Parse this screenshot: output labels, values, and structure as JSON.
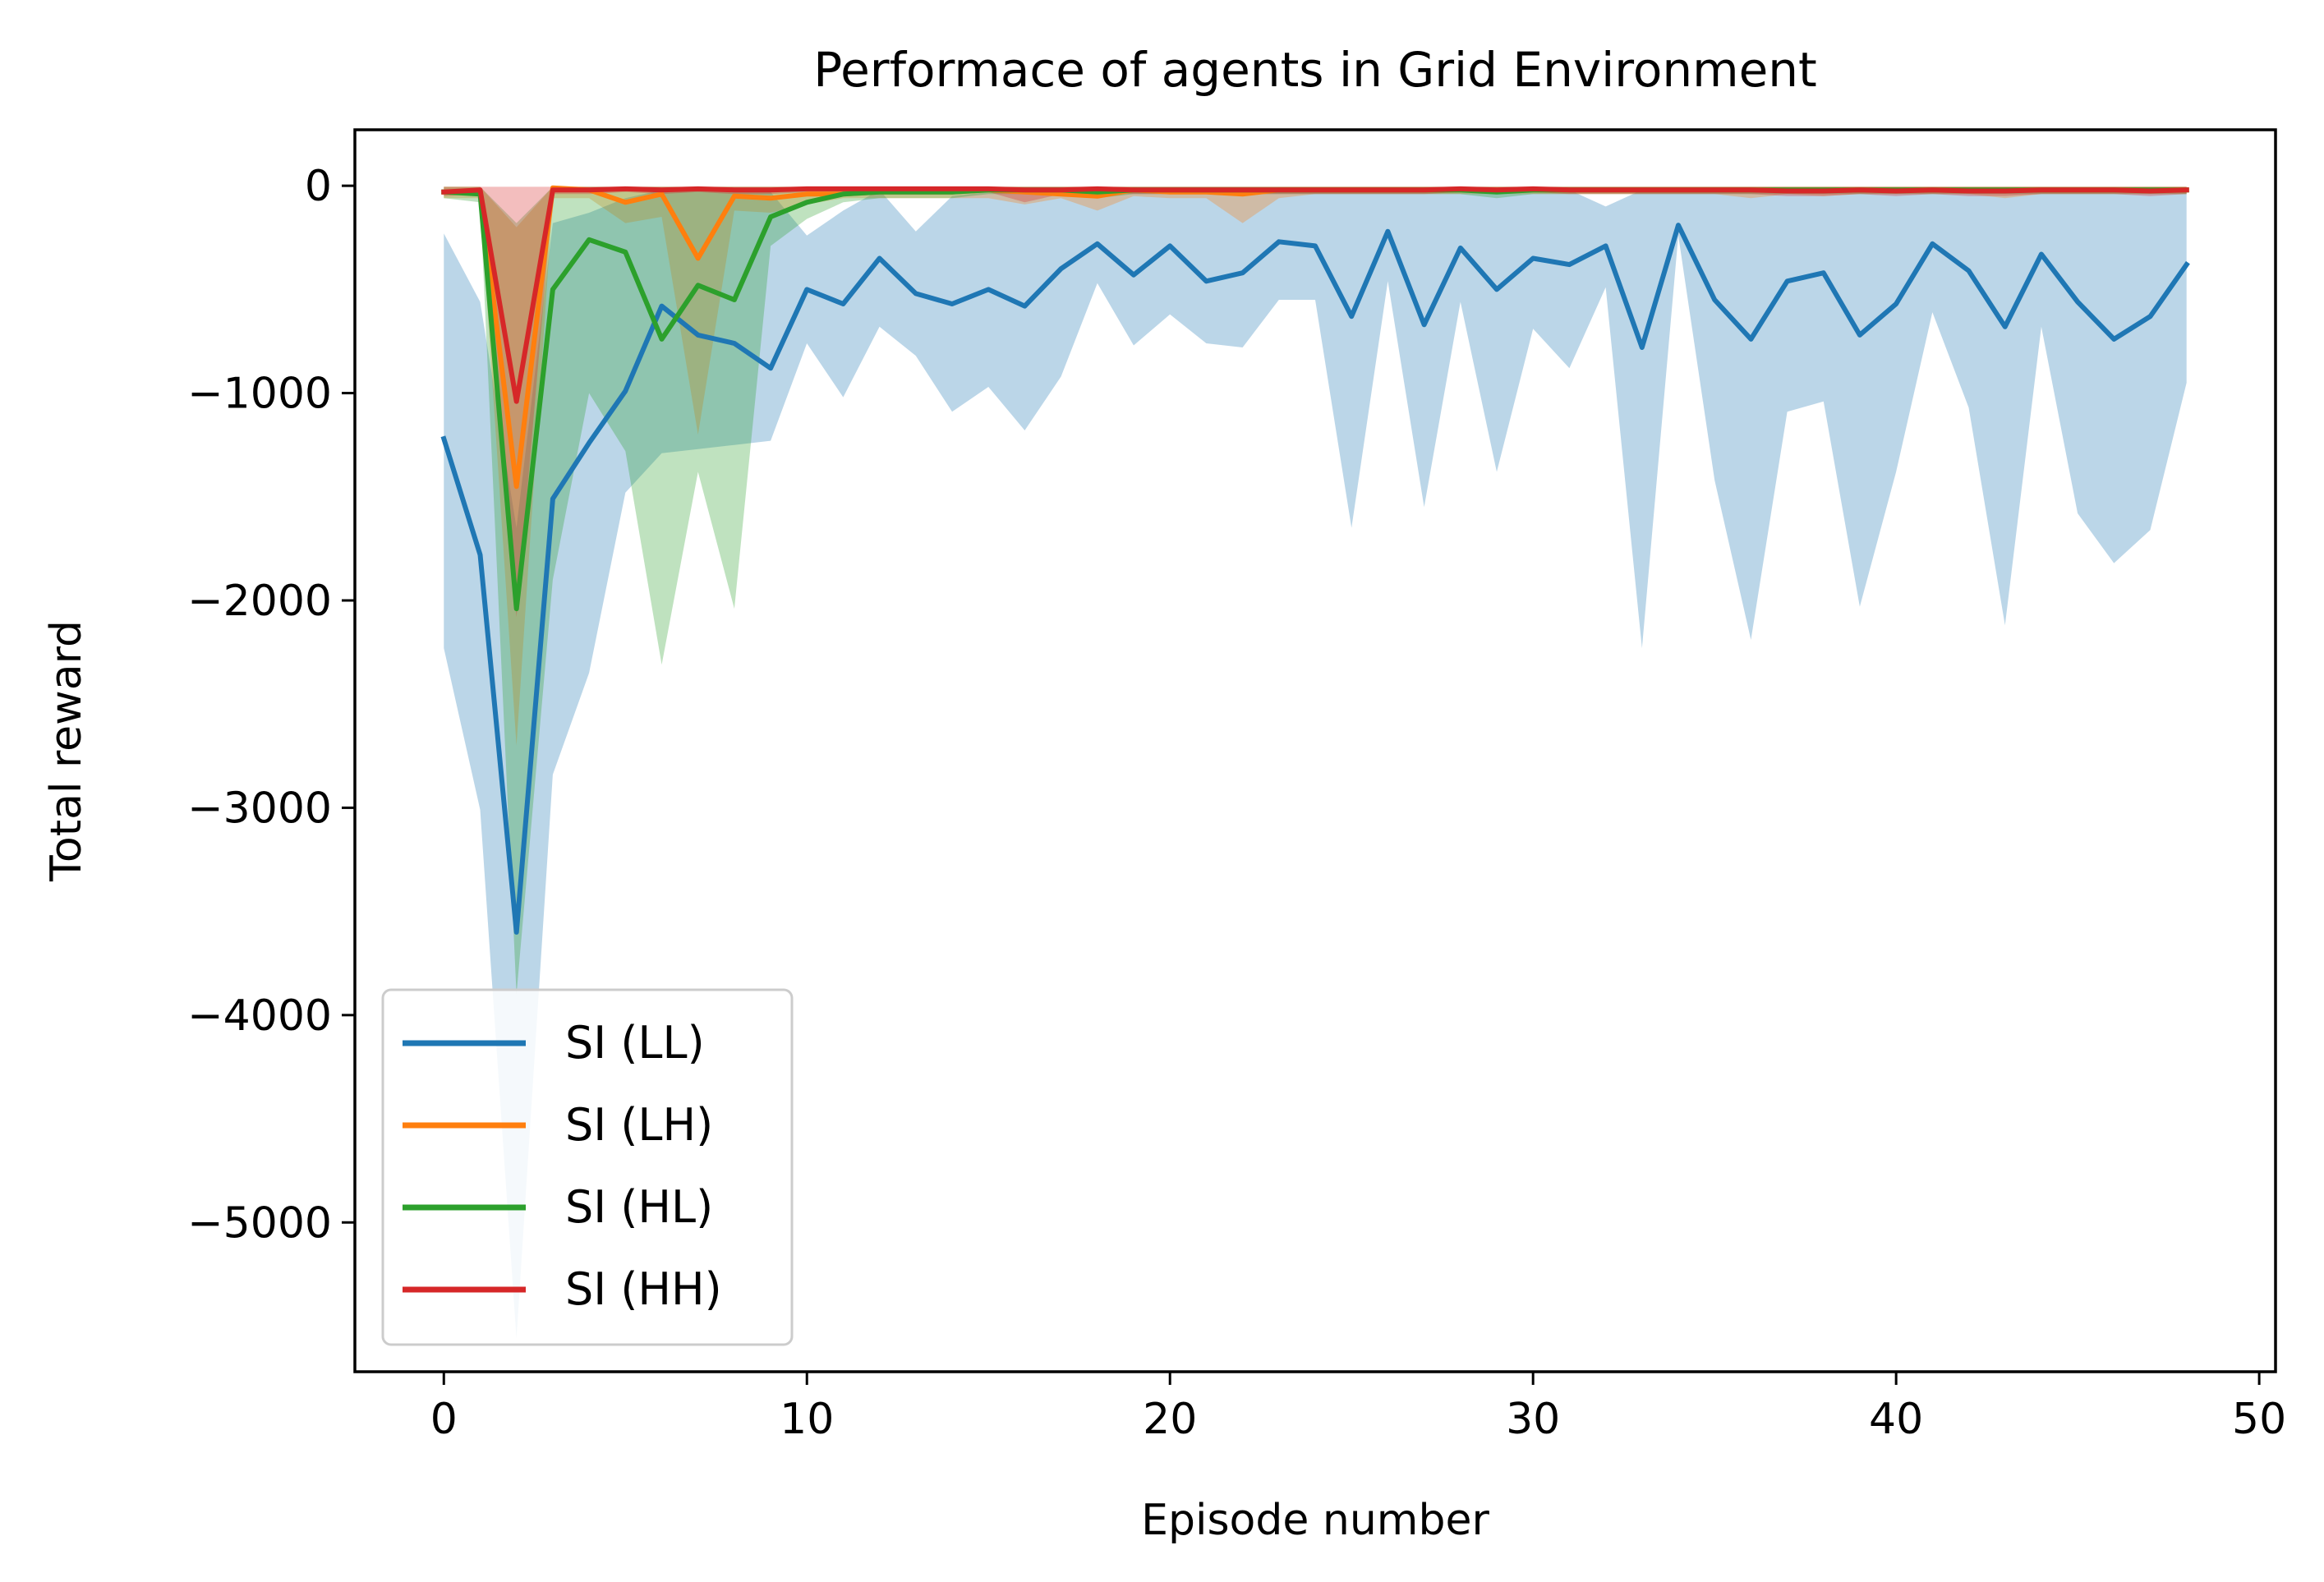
{
  "chart_data": {
    "type": "line",
    "title": "Performace of agents in Grid Environment",
    "xlabel": "Episode number",
    "ylabel": "Total reward",
    "xlim": [
      -2.45,
      50.45
    ],
    "ylim": [
      -5720,
      270
    ],
    "xticks": [
      0,
      10,
      20,
      30,
      40,
      50
    ],
    "xtick_labels": [
      "0",
      "10",
      "20",
      "30",
      "40",
      "50"
    ],
    "yticks": [
      0,
      -1000,
      -2000,
      -3000,
      -4000,
      -5000
    ],
    "ytick_labels": [
      "0",
      "−1000",
      "−2000",
      "−3000",
      "−4000",
      "−5000"
    ],
    "grid": false,
    "legend_position": "lower-left",
    "x": [
      0,
      1,
      2,
      3,
      4,
      5,
      6,
      7,
      8,
      9,
      10,
      11,
      12,
      13,
      14,
      15,
      16,
      17,
      18,
      19,
      20,
      21,
      22,
      23,
      24,
      25,
      26,
      27,
      28,
      29,
      30,
      31,
      32,
      33,
      34,
      35,
      36,
      37,
      38,
      39,
      40,
      41,
      42,
      43,
      44,
      45,
      46,
      47,
      48
    ],
    "series": [
      {
        "name": "SI (LL)",
        "color": "#1f77b4",
        "fill_alpha": 0.3,
        "values": [
          -1220,
          -1780,
          -3600,
          -1510,
          -1240,
          -990,
          -580,
          -720,
          -760,
          -880,
          -500,
          -570,
          -350,
          -520,
          -570,
          -500,
          -580,
          -400,
          -280,
          -430,
          -290,
          -460,
          -420,
          -270,
          -290,
          -630,
          -220,
          -670,
          -300,
          -500,
          -350,
          -380,
          -290,
          -780,
          -190,
          -550,
          -740,
          -460,
          -420,
          -720,
          -570,
          -280,
          -410,
          -680,
          -330,
          -560,
          -740,
          -630,
          -380
        ],
        "lower": [
          -2230,
          -3010,
          -5560,
          -2840,
          -2350,
          -1480,
          -1290,
          -1270,
          -1250,
          -1230,
          -760,
          -1020,
          -680,
          -820,
          -1090,
          -970,
          -1180,
          -920,
          -470,
          -770,
          -620,
          -760,
          -780,
          -550,
          -550,
          -1650,
          -460,
          -1550,
          -560,
          -1380,
          -690,
          -880,
          -490,
          -2230,
          -240,
          -1420,
          -2190,
          -1090,
          -1040,
          -2030,
          -1380,
          -610,
          -1070,
          -2120,
          -680,
          -1580,
          -1820,
          -1660,
          -950
        ],
        "upper": [
          -230,
          -560,
          -1650,
          -180,
          -130,
          -60,
          -20,
          -20,
          -20,
          -30,
          -240,
          -120,
          -20,
          -220,
          -50,
          -30,
          -20,
          -20,
          -20,
          -20,
          -20,
          -20,
          -20,
          -20,
          -20,
          -20,
          -20,
          -20,
          -20,
          -20,
          -20,
          -20,
          -100,
          -20,
          -20,
          -20,
          -20,
          -20,
          -20,
          -20,
          -20,
          -20,
          -20,
          -20,
          -20,
          -20,
          -20,
          -20,
          -20
        ]
      },
      {
        "name": "SI (LH)",
        "color": "#ff7f0e",
        "fill_alpha": 0.3,
        "values": [
          -30,
          -30,
          -1450,
          -10,
          -20,
          -80,
          -40,
          -350,
          -50,
          -60,
          -40,
          -40,
          -30,
          -30,
          -30,
          -20,
          -30,
          -40,
          -50,
          -20,
          -30,
          -30,
          -40,
          -20,
          -20,
          -20,
          -20,
          -20,
          -20,
          -20,
          -20,
          -20,
          -20,
          -20,
          -20,
          -20,
          -20,
          -20,
          -20,
          -20,
          -20,
          -20,
          -20,
          -20,
          -20,
          -20,
          -20,
          -20,
          -20
        ],
        "lower": [
          -60,
          -60,
          -2700,
          -60,
          -60,
          -180,
          -150,
          -1200,
          -120,
          -130,
          -90,
          -60,
          -60,
          -60,
          -60,
          -60,
          -90,
          -60,
          -120,
          -50,
          -60,
          -60,
          -180,
          -60,
          -40,
          -40,
          -40,
          -40,
          -40,
          -40,
          -40,
          -40,
          -40,
          -40,
          -40,
          -40,
          -60,
          -40,
          -50,
          -40,
          -40,
          -40,
          -40,
          -60,
          -40,
          -40,
          -40,
          -40,
          -40
        ],
        "upper": [
          -5,
          -5,
          -200,
          -5,
          -5,
          -5,
          -5,
          -5,
          -5,
          -5,
          -5,
          -5,
          -5,
          -5,
          -5,
          -5,
          -5,
          -5,
          -5,
          -5,
          -5,
          -5,
          -5,
          -5,
          -5,
          -5,
          -5,
          -5,
          -5,
          -5,
          -5,
          -5,
          -5,
          -5,
          -5,
          -5,
          -5,
          -5,
          -5,
          -5,
          -5,
          -5,
          -5,
          -5,
          -5,
          -5,
          -5,
          -5,
          -5
        ]
      },
      {
        "name": "SI (HL)",
        "color": "#2ca02c",
        "fill_alpha": 0.3,
        "values": [
          -30,
          -40,
          -2040,
          -500,
          -260,
          -320,
          -740,
          -480,
          -550,
          -150,
          -80,
          -40,
          -30,
          -30,
          -30,
          -20,
          -20,
          -20,
          -30,
          -20,
          -20,
          -20,
          -20,
          -20,
          -20,
          -20,
          -20,
          -20,
          -20,
          -30,
          -20,
          -20,
          -20,
          -20,
          -20,
          -20,
          -20,
          -20,
          -20,
          -20,
          -20,
          -20,
          -20,
          -20,
          -20,
          -20,
          -20,
          -20,
          -20
        ],
        "lower": [
          -60,
          -80,
          -3900,
          -1900,
          -1000,
          -1280,
          -2310,
          -1380,
          -2040,
          -290,
          -160,
          -80,
          -60,
          -60,
          -60,
          -40,
          -40,
          -40,
          -60,
          -40,
          -40,
          -40,
          -40,
          -40,
          -40,
          -40,
          -40,
          -40,
          -40,
          -60,
          -40,
          -40,
          -40,
          -40,
          -40,
          -40,
          -40,
          -40,
          -40,
          -40,
          -40,
          -40,
          -40,
          -40,
          -40,
          -40,
          -40,
          -40,
          -40
        ],
        "upper": [
          -5,
          -5,
          -180,
          -5,
          -5,
          -5,
          -5,
          -5,
          -5,
          -5,
          -5,
          -5,
          -5,
          -5,
          -5,
          -5,
          -5,
          -5,
          -5,
          -5,
          -5,
          -5,
          -5,
          -5,
          -5,
          -5,
          -5,
          -5,
          -5,
          -5,
          -5,
          -5,
          -5,
          -5,
          -5,
          -5,
          -5,
          -5,
          -5,
          -5,
          -5,
          -5,
          -5,
          -5,
          -5,
          -5,
          -5,
          -5,
          -5
        ]
      },
      {
        "name": "SI (HH)",
        "color": "#d62728",
        "fill_alpha": 0.3,
        "values": [
          -30,
          -20,
          -1040,
          -20,
          -20,
          -15,
          -20,
          -15,
          -20,
          -20,
          -15,
          -15,
          -15,
          -15,
          -15,
          -15,
          -20,
          -20,
          -15,
          -20,
          -20,
          -20,
          -20,
          -20,
          -20,
          -20,
          -20,
          -20,
          -15,
          -20,
          -15,
          -20,
          -20,
          -20,
          -20,
          -20,
          -20,
          -25,
          -25,
          -20,
          -25,
          -20,
          -25,
          -25,
          -20,
          -20,
          -20,
          -25,
          -20
        ],
        "lower": [
          -50,
          -40,
          -2080,
          -40,
          -40,
          -30,
          -40,
          -30,
          -40,
          -40,
          -30,
          -30,
          -30,
          -30,
          -30,
          -30,
          -80,
          -40,
          -30,
          -40,
          -40,
          -40,
          -40,
          -40,
          -40,
          -40,
          -40,
          -40,
          -30,
          -40,
          -30,
          -40,
          -40,
          -40,
          -40,
          -40,
          -40,
          -50,
          -50,
          -40,
          -50,
          -40,
          -50,
          -50,
          -40,
          -40,
          -40,
          -50,
          -40
        ],
        "upper": [
          -5,
          -5,
          -5,
          -5,
          -5,
          -5,
          -5,
          -5,
          -5,
          -5,
          -5,
          -5,
          -5,
          -5,
          -5,
          -5,
          -5,
          -5,
          -5,
          -5,
          -5,
          -5,
          -5,
          -5,
          -5,
          -5,
          -5,
          -5,
          -5,
          -5,
          -5,
          -5,
          -5,
          -5,
          -5,
          -5,
          -5,
          -5,
          -5,
          -5,
          -5,
          -5,
          -5,
          -5,
          -5,
          -5,
          -5,
          -5,
          -5
        ]
      }
    ]
  }
}
